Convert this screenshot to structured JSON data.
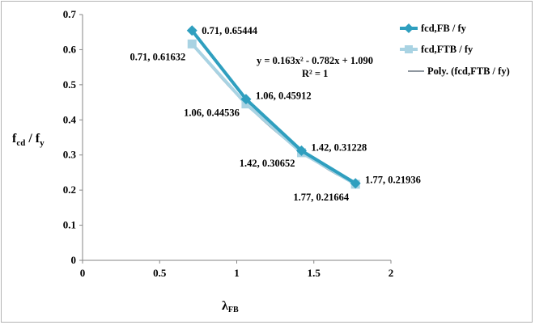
{
  "chart_data": {
    "type": "line",
    "title": "",
    "xlabel": {
      "main": "λ",
      "sub": "FB"
    },
    "ylabel": {
      "part1": "f",
      "sub1": "cd",
      "part2": " / f",
      "sub2": "y"
    },
    "xlim": [
      0,
      2
    ],
    "ylim": [
      0,
      0.7
    ],
    "xticks": [
      "0",
      "0.5",
      "1",
      "1.5",
      "2"
    ],
    "yticks": [
      "0",
      "0.1",
      "0.2",
      "0.3",
      "0.4",
      "0.5",
      "0.6",
      "0.7"
    ],
    "grid": false,
    "legend_position": "right",
    "series": [
      {
        "name": "fcd,FB / fy",
        "marker": "diamond",
        "color": "#2f9fbf",
        "x": [
          0.71,
          1.06,
          1.42,
          1.77
        ],
        "y": [
          0.65444,
          0.45912,
          0.31228,
          0.21936
        ],
        "labels": [
          "0.71, 0.65444",
          "1.06, 0.45912",
          "1.42, 0.31228",
          "1.77, 0.21936"
        ]
      },
      {
        "name": "fcd,FTB / fy",
        "marker": "square",
        "color": "#a9d3e3",
        "x": [
          0.71,
          1.06,
          1.42,
          1.77
        ],
        "y": [
          0.61632,
          0.44536,
          0.30652,
          0.21664
        ],
        "labels": [
          "0.71, 0.61632",
          "1.06, 0.44536",
          "1.42, 0.30652",
          "1.77, 0.21664"
        ]
      },
      {
        "name": "Poly. (fcd,FTB / fy)",
        "marker": "none",
        "color": "#1f2f3f",
        "type": "trendline",
        "coefficients": [
          0.163,
          -0.782,
          1.09
        ]
      }
    ],
    "annotations": {
      "equation": "y = 0.163x² - 0.782x + 1.090",
      "r_squared": "R² = 1"
    }
  }
}
